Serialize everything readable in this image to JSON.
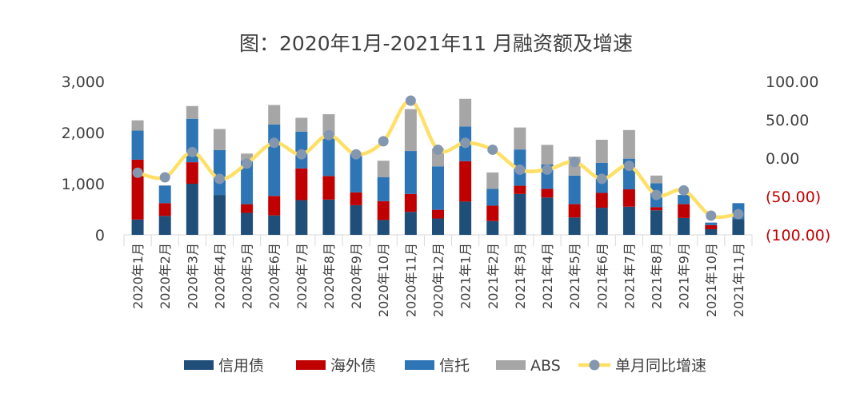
{
  "chart_data": {
    "type": "bar",
    "stacked": true,
    "title": "图：2020年1月-2021年11 月融资额及增速",
    "categories": [
      "2020年1月",
      "2020年2月",
      "2020年3月",
      "2020年4月",
      "2020年5月",
      "2020年6月",
      "2020年7月",
      "2020年8月",
      "2020年9月",
      "2020年10月",
      "2020年11月",
      "2020年12月",
      "2021年1月",
      "2021年2月",
      "2021年3月",
      "2021年4月",
      "2021年5月",
      "2021年6月",
      "2021年7月",
      "2021年8月",
      "2021年9月",
      "2021年10月",
      "2021年11月"
    ],
    "series": [
      {
        "name": "信用债",
        "color": "#1f4e79",
        "values": [
          300,
          370,
          1000,
          780,
          430,
          380,
          680,
          690,
          580,
          290,
          450,
          320,
          650,
          270,
          800,
          730,
          340,
          530,
          550,
          480,
          330,
          110,
          310
        ]
      },
      {
        "name": "海外债",
        "color": "#c00000",
        "values": [
          1170,
          250,
          420,
          0,
          170,
          380,
          620,
          460,
          250,
          370,
          350,
          170,
          790,
          300,
          160,
          170,
          260,
          290,
          340,
          60,
          270,
          80,
          0
        ]
      },
      {
        "name": "信托",
        "color": "#2e75b6",
        "values": [
          570,
          340,
          850,
          880,
          850,
          1400,
          720,
          770,
          770,
          470,
          840,
          850,
          680,
          330,
          710,
          480,
          560,
          590,
          600,
          470,
          180,
          50,
          310
        ]
      },
      {
        "name": "ABS",
        "color": "#a6a6a6",
        "values": [
          200,
          10,
          250,
          410,
          140,
          380,
          270,
          440,
          0,
          320,
          820,
          350,
          540,
          320,
          430,
          380,
          370,
          450,
          560,
          150,
          0,
          0,
          0
        ]
      }
    ],
    "line_series": {
      "name": "单月同比增速",
      "axis": "right",
      "values": [
        -19,
        -25,
        8,
        -27,
        -7,
        20,
        5,
        30,
        5,
        22,
        75,
        11,
        20,
        11,
        -15,
        -15,
        -5,
        -27,
        -10,
        -48,
        -42,
        -75,
        -73
      ]
    },
    "y_left": {
      "ticks": [
        "0",
        "1,000",
        "2,000",
        "3,000"
      ],
      "min": 0,
      "max": 3000
    },
    "y_right": {
      "ticks": [
        "(100.00)",
        "(50.00)",
        "0.00",
        "50.00",
        "100.00"
      ],
      "min": -100,
      "max": 100
    },
    "line_color": "#ffe066",
    "marker_color": "#8497b0",
    "legend_position": "bottom"
  }
}
